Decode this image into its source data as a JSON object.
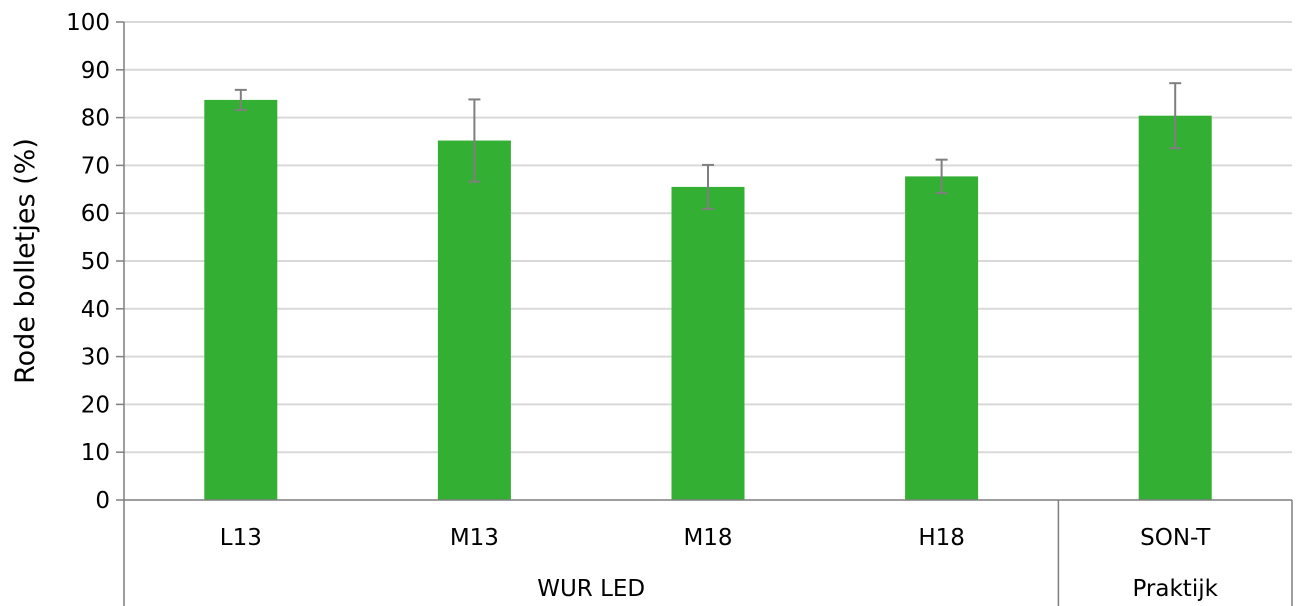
{
  "chart_data": {
    "type": "bar",
    "title": "",
    "xlabel": "",
    "ylabel": "Rode bolletjes (%)",
    "ylim": [
      0,
      100
    ],
    "ytick_step": 10,
    "grid": true,
    "categories": [
      "L13",
      "M13",
      "M18",
      "H18",
      "SON-T"
    ],
    "values": [
      83.7,
      75.2,
      65.5,
      67.7,
      80.4
    ],
    "error": [
      2.1,
      8.6,
      4.6,
      3.5,
      6.8
    ],
    "groups": [
      {
        "label": "WUR LED",
        "categories": [
          "L13",
          "M13",
          "M18",
          "H18"
        ]
      },
      {
        "label": "Praktijk",
        "categories": [
          "SON-T"
        ]
      }
    ],
    "colors": {
      "bar": "#33AF33",
      "error_bar": "#7f7f7f",
      "grid": "#d9d9d9",
      "axis": "#7f7f7f"
    }
  }
}
